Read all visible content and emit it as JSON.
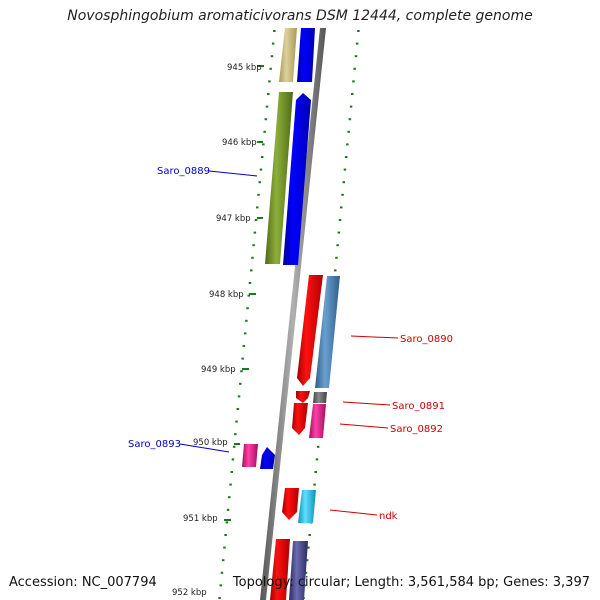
{
  "title": "Novosphingobium aromaticivorans DSM 12444, complete genome",
  "footer": {
    "accession": "Accession: NC_007794",
    "topology": "Topology: circular; Length: 3,561,584 bp; Genes: 3,397"
  },
  "ticks": [
    "945 kbp",
    "946 kbp",
    "947 kbp",
    "948 kbp",
    "949 kbp",
    "950 kbp",
    "951 kbp",
    "952 kbp"
  ],
  "gene_labels": [
    {
      "text": "Saro_0889",
      "color": "#0000cc"
    },
    {
      "text": "Saro_0890",
      "color": "#cc0000"
    },
    {
      "text": "Saro_0891",
      "color": "#cc0000"
    },
    {
      "text": "Saro_0892",
      "color": "#cc0000"
    },
    {
      "text": "Saro_0893",
      "color": "#0000cc"
    },
    {
      "text": "ndk",
      "color": "#cc0000"
    }
  ],
  "colors": {
    "backbone": "#8a8a8a",
    "gc_dots": "#1a7a1a",
    "forward_cds": "#0000ee",
    "reverse_cds": "#ee0000",
    "khaki": "#c8bb80",
    "olive": "#6f8f2a",
    "steelblue": "#4682b4",
    "gray": "#666666",
    "magenta": "#e0208a",
    "cyan": "#20c0e8",
    "slate": "#484890"
  }
}
